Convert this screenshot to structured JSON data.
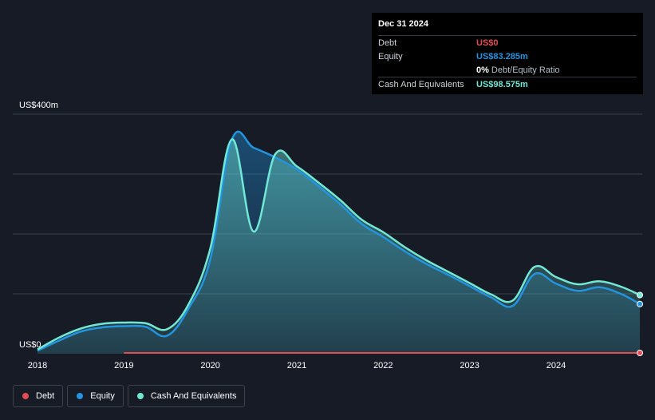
{
  "tooltip": {
    "date": "Dec 31 2024",
    "rows": {
      "debt_label": "Debt",
      "debt_value": "US$0",
      "equity_label": "Equity",
      "equity_value": "US$83.285m",
      "ratio_value": "0%",
      "ratio_label": "Debt/Equity Ratio",
      "cash_label": "Cash And Equivalents",
      "cash_value": "US$98.575m"
    }
  },
  "legend": {
    "debt": "Debt",
    "equity": "Equity",
    "cash": "Cash And Equivalents"
  },
  "colors": {
    "background": "#161b26",
    "debt": "#e64d52",
    "equity": "#2394df",
    "cash": "#71e7d6",
    "grid": "#3a404b"
  },
  "chart_data": {
    "type": "area",
    "y_unit_label_top": "US$400m",
    "y_unit_label_bottom": "US$0",
    "ylim": [
      0,
      400
    ],
    "xlim": [
      2018.0,
      2024.97
    ],
    "x_ticks": [
      "2018",
      "2019",
      "2020",
      "2021",
      "2022",
      "2023",
      "2024"
    ],
    "x_tick_values": [
      2018,
      2019,
      2020,
      2021,
      2022,
      2023,
      2024
    ],
    "y_grid": [
      0,
      100,
      200,
      300,
      400
    ],
    "legend_position": "bottom-left",
    "series": [
      {
        "name": "Debt",
        "key": "debt",
        "x": [
          2019.0,
          2024.97
        ],
        "y": [
          0,
          0
        ]
      },
      {
        "name": "Equity",
        "key": "equity",
        "x": [
          2018.0,
          2018.25,
          2018.5,
          2018.75,
          2019.0,
          2019.25,
          2019.5,
          2019.75,
          2020.0,
          2020.25,
          2020.5,
          2020.75,
          2021.0,
          2021.25,
          2021.5,
          2021.75,
          2022.0,
          2022.25,
          2022.5,
          2022.75,
          2023.0,
          2023.25,
          2023.5,
          2023.75,
          2024.0,
          2024.25,
          2024.5,
          2024.75,
          2024.97
        ],
        "y": [
          5,
          22,
          37,
          44,
          46,
          45,
          30,
          76,
          158,
          358,
          344,
          328,
          308,
          280,
          250,
          217,
          195,
          171,
          150,
          132,
          113,
          94,
          80,
          133,
          117,
          105,
          111,
          100,
          83
        ]
      },
      {
        "name": "Cash And Equivalents",
        "key": "cash",
        "x": [
          2018.0,
          2018.25,
          2018.5,
          2018.75,
          2019.0,
          2019.25,
          2019.5,
          2019.75,
          2020.0,
          2020.25,
          2020.5,
          2020.75,
          2021.0,
          2021.25,
          2021.5,
          2021.75,
          2022.0,
          2022.25,
          2022.5,
          2022.75,
          2023.0,
          2023.25,
          2023.5,
          2023.75,
          2024.0,
          2024.25,
          2024.5,
          2024.75,
          2024.97
        ],
        "y": [
          7,
          27,
          42,
          50,
          52,
          51,
          41,
          83,
          176,
          358,
          204,
          333,
          313,
          286,
          257,
          224,
          203,
          178,
          156,
          137,
          118,
          99,
          89,
          145,
          128,
          116,
          121,
          112,
          98
        ]
      }
    ]
  }
}
